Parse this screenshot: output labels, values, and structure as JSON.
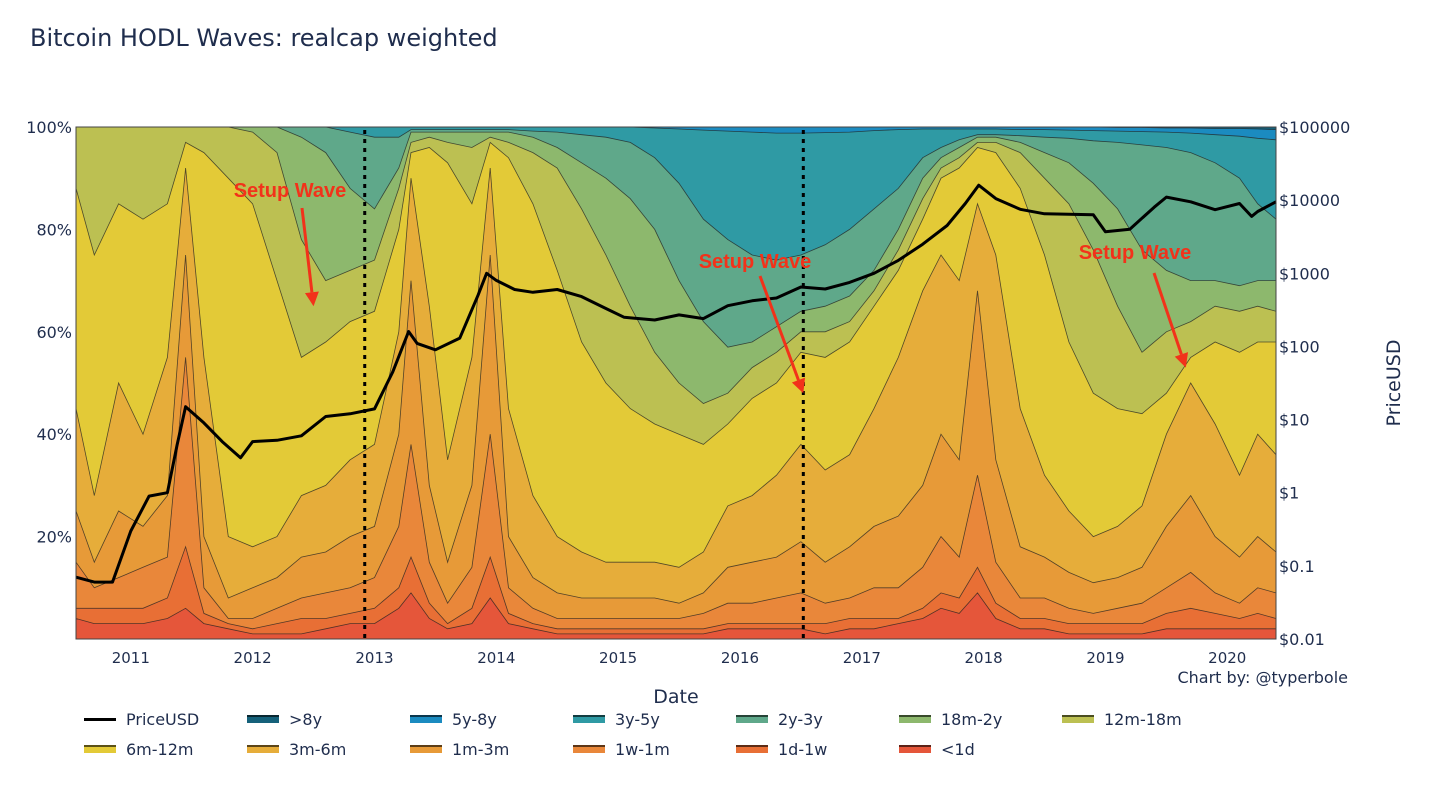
{
  "chart_data": {
    "type": "area",
    "title": "Bitcoin HODL Waves: realcap weighted",
    "xlabel": "Date",
    "ylabel_left": "",
    "ylabel_right": "PriceUSD",
    "credit": "Chart by: @typerbole",
    "x_range": [
      2010.55,
      2020.4
    ],
    "x_ticks": [
      2011,
      2012,
      2013,
      2014,
      2015,
      2016,
      2017,
      2018,
      2019,
      2020
    ],
    "x_tick_labels": [
      "2011",
      "2012",
      "2013",
      "2014",
      "2015",
      "2016",
      "2017",
      "2018",
      "2019",
      "2020"
    ],
    "y_left_range": [
      0,
      100
    ],
    "y_left_ticks": [
      20,
      40,
      60,
      80,
      100
    ],
    "y_left_tick_labels": [
      "20%",
      "40%",
      "60%",
      "80%",
      "100%"
    ],
    "y_right_scale": "log",
    "y_right_range": [
      0.01,
      100000
    ],
    "y_right_ticks": [
      0.01,
      0.1,
      1,
      10,
      100,
      1000,
      10000,
      100000
    ],
    "y_right_tick_labels": [
      "$0.01",
      "$0.1",
      "$1",
      "$10",
      "$100",
      "$1000",
      "$10000",
      "$100000"
    ],
    "grid": false,
    "legend_position": "bottom",
    "x": [
      2010.55,
      2010.7,
      2010.9,
      2011.1,
      2011.3,
      2011.45,
      2011.6,
      2011.8,
      2012.0,
      2012.2,
      2012.4,
      2012.6,
      2012.8,
      2013.0,
      2013.2,
      2013.3,
      2013.45,
      2013.6,
      2013.8,
      2013.95,
      2014.1,
      2014.3,
      2014.5,
      2014.7,
      2014.9,
      2015.1,
      2015.3,
      2015.5,
      2015.7,
      2015.9,
      2016.1,
      2016.3,
      2016.5,
      2016.7,
      2016.9,
      2017.1,
      2017.3,
      2017.5,
      2017.65,
      2017.8,
      2017.95,
      2018.1,
      2018.3,
      2018.5,
      2018.7,
      2018.9,
      2019.1,
      2019.3,
      2019.5,
      2019.7,
      2019.9,
      2020.1,
      2020.25,
      2020.4
    ],
    "series": [
      {
        "name": "<1d",
        "color": "#e5563a",
        "values": [
          4,
          3,
          3,
          3,
          4,
          6,
          3,
          2,
          1,
          1,
          1,
          2,
          3,
          3,
          6,
          9,
          4,
          2,
          3,
          8,
          3,
          2,
          1,
          1,
          1,
          1,
          1,
          1,
          1,
          2,
          2,
          2,
          2,
          1,
          2,
          2,
          3,
          4,
          6,
          5,
          9,
          4,
          2,
          2,
          1,
          1,
          1,
          1,
          2,
          2,
          2,
          2,
          2,
          2
        ]
      },
      {
        "name": "1d-1w",
        "color": "#e86f35",
        "values": [
          6,
          6,
          6,
          6,
          8,
          18,
          5,
          3,
          2,
          3,
          4,
          4,
          5,
          6,
          10,
          16,
          7,
          3,
          6,
          16,
          5,
          3,
          2,
          2,
          2,
          2,
          2,
          2,
          2,
          3,
          3,
          3,
          3,
          3,
          4,
          4,
          4,
          6,
          9,
          8,
          14,
          7,
          4,
          4,
          3,
          3,
          3,
          3,
          5,
          6,
          5,
          4,
          5,
          4
        ]
      },
      {
        "name": "1w-1m",
        "color": "#e9873a",
        "values": [
          15,
          10,
          12,
          14,
          16,
          55,
          10,
          4,
          4,
          6,
          8,
          9,
          10,
          12,
          22,
          38,
          15,
          7,
          14,
          40,
          10,
          6,
          4,
          4,
          4,
          4,
          4,
          4,
          5,
          7,
          7,
          8,
          9,
          7,
          8,
          10,
          10,
          14,
          20,
          16,
          32,
          15,
          8,
          8,
          6,
          5,
          6,
          7,
          10,
          13,
          9,
          7,
          10,
          9
        ]
      },
      {
        "name": "1m-3m",
        "color": "#e79a38",
        "values": [
          25,
          15,
          25,
          22,
          28,
          75,
          20,
          8,
          10,
          12,
          16,
          17,
          20,
          22,
          40,
          70,
          30,
          15,
          30,
          75,
          20,
          12,
          9,
          8,
          8,
          8,
          8,
          7,
          9,
          14,
          15,
          16,
          19,
          15,
          18,
          22,
          24,
          30,
          40,
          35,
          68,
          35,
          18,
          16,
          13,
          11,
          12,
          14,
          22,
          28,
          20,
          16,
          20,
          17
        ]
      },
      {
        "name": "3m-6m",
        "color": "#e6ad3a",
        "values": [
          45,
          28,
          50,
          40,
          55,
          92,
          55,
          20,
          18,
          20,
          28,
          30,
          35,
          38,
          60,
          90,
          65,
          35,
          55,
          92,
          45,
          28,
          20,
          17,
          15,
          15,
          15,
          14,
          17,
          26,
          28,
          32,
          38,
          33,
          36,
          45,
          55,
          68,
          75,
          70,
          85,
          75,
          45,
          32,
          25,
          20,
          22,
          26,
          40,
          50,
          42,
          32,
          40,
          36
        ]
      },
      {
        "name": "6m-12m",
        "color": "#e3ca37",
        "values": [
          88,
          75,
          85,
          82,
          85,
          97,
          95,
          90,
          85,
          70,
          55,
          58,
          62,
          64,
          80,
          95,
          96,
          93,
          85,
          97,
          94,
          85,
          72,
          58,
          50,
          45,
          42,
          40,
          38,
          42,
          47,
          50,
          56,
          55,
          58,
          65,
          72,
          82,
          90,
          92,
          96,
          95,
          88,
          75,
          58,
          48,
          45,
          44,
          48,
          55,
          58,
          56,
          58,
          58
        ]
      },
      {
        "name": "12m-18m",
        "color": "#bcc052",
        "values": [
          100,
          100,
          100,
          100,
          100,
          100,
          100,
          100,
          99,
          95,
          78,
          70,
          72,
          74,
          88,
          97,
          98,
          97,
          96,
          98,
          97,
          95,
          92,
          84,
          75,
          65,
          56,
          50,
          46,
          48,
          53,
          56,
          60,
          60,
          62,
          68,
          76,
          86,
          92,
          94,
          97,
          97,
          95,
          90,
          85,
          76,
          65,
          56,
          60,
          62,
          65,
          64,
          65,
          64
        ]
      },
      {
        "name": "18m-2y",
        "color": "#8db86d",
        "values": [
          100,
          100,
          100,
          100,
          100,
          100,
          100,
          100,
          100,
          100,
          98,
          95,
          88,
          84,
          92,
          99,
          99,
          99,
          99,
          99,
          99,
          98,
          96,
          93,
          90,
          86,
          80,
          70,
          62,
          57,
          58,
          61,
          64,
          65,
          67,
          72,
          80,
          90,
          94,
          96,
          98,
          98,
          97,
          95,
          93,
          89,
          84,
          76,
          72,
          70,
          70,
          69,
          70,
          70
        ]
      },
      {
        "name": "2y-3y",
        "color": "#5fa88a",
        "values": [
          100,
          100,
          100,
          100,
          100,
          100,
          100,
          100,
          100,
          100,
          100,
          100,
          99,
          98,
          98,
          99.5,
          99.5,
          99.5,
          99.5,
          99.5,
          99.5,
          99.2,
          99,
          98.5,
          98,
          97,
          94,
          89,
          82,
          78,
          75,
          74,
          75,
          77,
          80,
          84,
          88,
          94,
          96,
          97.5,
          98.5,
          98.5,
          98.3,
          98,
          97.8,
          97.3,
          97,
          96.5,
          96,
          95,
          93,
          90,
          85,
          82
        ]
      },
      {
        "name": "3y-5y",
        "color": "#2f9aa4",
        "values": [
          100,
          100,
          100,
          100,
          100,
          100,
          100,
          100,
          100,
          100,
          100,
          100,
          100,
          100,
          100,
          100,
          100,
          100,
          100,
          100,
          100,
          100,
          100,
          100,
          100,
          100,
          99.8,
          99.6,
          99.4,
          99.2,
          99,
          98.8,
          98.8,
          98.9,
          99,
          99.3,
          99.5,
          99.6,
          99.6,
          99.6,
          99.6,
          99.6,
          99.5,
          99.5,
          99.4,
          99.3,
          99.2,
          99.1,
          99,
          98.8,
          98.5,
          98.2,
          97.8,
          97.5
        ]
      },
      {
        "name": "5y-8y",
        "color": "#1b8bc0",
        "values": [
          100,
          100,
          100,
          100,
          100,
          100,
          100,
          100,
          100,
          100,
          100,
          100,
          100,
          100,
          100,
          100,
          100,
          100,
          100,
          100,
          100,
          100,
          100,
          100,
          100,
          100,
          100,
          100,
          100,
          100,
          100,
          100,
          100,
          100,
          100,
          100,
          100,
          100,
          100,
          100,
          100,
          100,
          100,
          100,
          100,
          100,
          99.9,
          99.9,
          99.8,
          99.8,
          99.7,
          99.7,
          99.6,
          99.5
        ]
      },
      {
        "name": ">8y",
        "color": "#15617a",
        "values": [
          100,
          100,
          100,
          100,
          100,
          100,
          100,
          100,
          100,
          100,
          100,
          100,
          100,
          100,
          100,
          100,
          100,
          100,
          100,
          100,
          100,
          100,
          100,
          100,
          100,
          100,
          100,
          100,
          100,
          100,
          100,
          100,
          100,
          100,
          100,
          100,
          100,
          100,
          100,
          100,
          100,
          100,
          100,
          100,
          100,
          100,
          100,
          100,
          100,
          100,
          100,
          100,
          100,
          100
        ]
      }
    ],
    "price_series": {
      "name": "PriceUSD",
      "color": "#000000",
      "x": [
        2010.55,
        2010.7,
        2010.85,
        2011.0,
        2011.15,
        2011.3,
        2011.38,
        2011.45,
        2011.6,
        2011.75,
        2011.9,
        2012.0,
        2012.2,
        2012.4,
        2012.6,
        2012.8,
        2013.0,
        2013.15,
        2013.28,
        2013.35,
        2013.5,
        2013.7,
        2013.85,
        2013.92,
        2014.0,
        2014.15,
        2014.3,
        2014.5,
        2014.7,
        2014.9,
        2015.05,
        2015.3,
        2015.5,
        2015.7,
        2015.9,
        2016.1,
        2016.3,
        2016.5,
        2016.7,
        2016.9,
        2017.1,
        2017.3,
        2017.5,
        2017.7,
        2017.85,
        2017.96,
        2018.1,
        2018.3,
        2018.5,
        2018.7,
        2018.9,
        2019.0,
        2019.2,
        2019.4,
        2019.5,
        2019.7,
        2019.9,
        2020.1,
        2020.2,
        2020.25,
        2020.4
      ],
      "values": [
        0.07,
        0.06,
        0.06,
        0.3,
        0.9,
        1.0,
        4.5,
        15,
        9,
        5,
        3,
        5,
        5.2,
        6,
        11,
        12,
        14,
        45,
        160,
        110,
        90,
        130,
        500,
        1000,
        800,
        600,
        550,
        600,
        480,
        330,
        250,
        230,
        270,
        240,
        360,
        420,
        460,
        650,
        610,
        750,
        1000,
        1500,
        2500,
        4500,
        9000,
        16000,
        10500,
        7500,
        6500,
        6400,
        6300,
        3700,
        4000,
        8000,
        11000,
        9500,
        7400,
        9000,
        6000,
        7000,
        9500
      ]
    },
    "vertical_markers": [
      2012.92,
      2016.52
    ],
    "annotations": [
      {
        "text": "Setup Wave",
        "arrow_to_x": 2012.5,
        "arrow_to_pct": 65
      },
      {
        "text": "Setup Wave",
        "arrow_to_x": 2016.52,
        "arrow_to_pct": 48
      },
      {
        "text": "Setup Wave",
        "arrow_to_x": 2019.66,
        "arrow_to_pct": 53
      }
    ]
  },
  "legend": {
    "rows": [
      [
        {
          "label": "PriceUSD",
          "type": "line",
          "color": "#000000"
        },
        {
          "label": ">8y",
          "type": "area",
          "color": "#15617a"
        },
        {
          "label": "5y-8y",
          "type": "area",
          "color": "#1b8bc0"
        },
        {
          "label": "3y-5y",
          "type": "area",
          "color": "#2f9aa4"
        },
        {
          "label": "2y-3y",
          "type": "area",
          "color": "#5fa88a"
        },
        {
          "label": "18m-2y",
          "type": "area",
          "color": "#8db86d"
        },
        {
          "label": "12m-18m",
          "type": "area",
          "color": "#bcc052"
        }
      ],
      [
        {
          "label": "6m-12m",
          "type": "area",
          "color": "#e3ca37"
        },
        {
          "label": "3m-6m",
          "type": "area",
          "color": "#e6ad3a"
        },
        {
          "label": "1m-3m",
          "type": "area",
          "color": "#e79a38"
        },
        {
          "label": "1w-1m",
          "type": "area",
          "color": "#e9873a"
        },
        {
          "label": "1d-1w",
          "type": "area",
          "color": "#e86f35"
        },
        {
          "label": "<1d",
          "type": "area",
          "color": "#e5563a"
        }
      ]
    ]
  }
}
